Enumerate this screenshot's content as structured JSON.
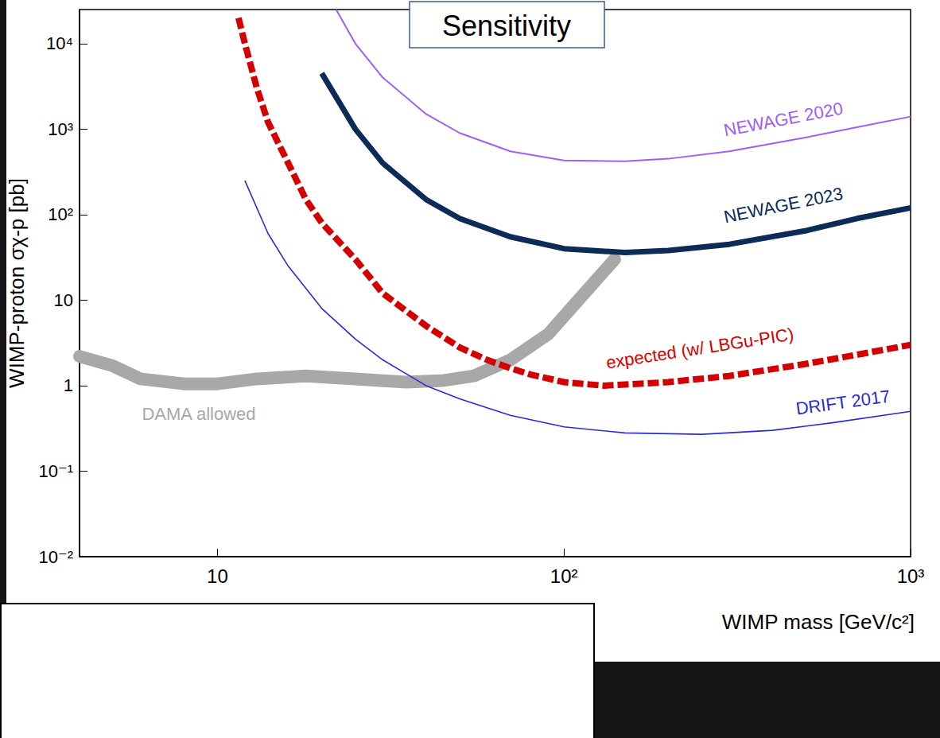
{
  "chart_data": {
    "type": "line",
    "title": "Sensitivity",
    "xlabel": "WIMP mass [GeV/c²]",
    "ylabel": "WIMP-proton σχ-p [pb]",
    "log": true,
    "grid": false,
    "xlim": [
      4,
      1000
    ],
    "ylim": [
      0.01,
      25000
    ],
    "xticks": [
      10,
      {
        "value": 100,
        "label": "10²"
      },
      {
        "value": 1000,
        "label": "10³"
      }
    ],
    "yticks": [
      {
        "value": 0.01,
        "label": "10⁻²"
      },
      {
        "value": 0.1,
        "label": "10⁻¹"
      },
      1,
      10,
      {
        "value": 100,
        "label": "10²"
      },
      {
        "value": 1000,
        "label": "10³"
      },
      {
        "value": 10000,
        "label": "10⁴"
      }
    ],
    "series": [
      {
        "name": "DAMA allowed",
        "color": "#a8a8a8",
        "line_style": "band",
        "x": [
          4,
          5,
          6,
          8,
          10,
          13,
          18,
          25,
          35,
          45,
          55,
          70,
          90,
          110,
          140
        ],
        "values": [
          2.2,
          1.7,
          1.2,
          1.05,
          1.05,
          1.2,
          1.3,
          1.2,
          1.1,
          1.15,
          1.3,
          2,
          4,
          10,
          30
        ]
      },
      {
        "name": "NEWAGE 2020",
        "color": "#a05ef5",
        "line_style": "solid",
        "x": [
          22,
          25,
          30,
          40,
          50,
          70,
          100,
          150,
          200,
          300,
          500,
          700,
          1000
        ],
        "values": [
          25000,
          10000,
          4000,
          1500,
          900,
          550,
          430,
          420,
          450,
          550,
          800,
          1050,
          1400
        ]
      },
      {
        "name": "NEWAGE 2023",
        "color": "#0d2b57",
        "line_style": "solid",
        "x": [
          20,
          25,
          30,
          40,
          50,
          70,
          100,
          150,
          200,
          300,
          500,
          700,
          1000
        ],
        "values": [
          4500,
          1000,
          400,
          150,
          90,
          55,
          40,
          36,
          38,
          45,
          65,
          90,
          120
        ]
      },
      {
        "name": "expected (w/ LBGu-PIC)",
        "color": "#d40000",
        "line_style": "dashed",
        "x": [
          11.5,
          12,
          13,
          14,
          16,
          18,
          20,
          25,
          30,
          40,
          50,
          60,
          70,
          80,
          100,
          130,
          200,
          300,
          500,
          700,
          1000
        ],
        "values": [
          20000,
          10000,
          3000,
          1200,
          400,
          150,
          80,
          30,
          12,
          5,
          2.8,
          2,
          1.6,
          1.35,
          1.1,
          1.0,
          1.1,
          1.3,
          1.8,
          2.3,
          3
        ]
      },
      {
        "name": "DRIFT 2017",
        "color": "#2b2bd4",
        "line_style": "solid",
        "x": [
          12,
          14,
          16,
          20,
          25,
          30,
          40,
          50,
          70,
          100,
          150,
          250,
          400,
          600,
          1000
        ],
        "values": [
          250,
          60,
          25,
          8,
          3.5,
          2,
          1,
          0.7,
          0.45,
          0.33,
          0.28,
          0.27,
          0.3,
          0.37,
          0.5
        ]
      }
    ]
  }
}
